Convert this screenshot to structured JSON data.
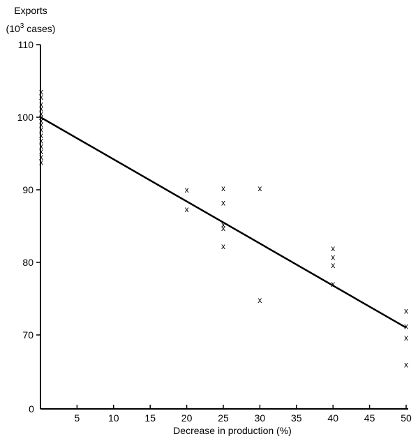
{
  "chart_data": {
    "type": "scatter",
    "ylabel_line1": "Exports",
    "ylabel_line2_prefix": "(10",
    "ylabel_line2_exp": "3",
    "ylabel_line2_suffix": " cases)",
    "xlabel": "Decrease in production (%)",
    "x_ticks": [
      5,
      10,
      15,
      20,
      25,
      30,
      35,
      40,
      45,
      50
    ],
    "x_tick_labels": [
      "5",
      "10",
      "15",
      "20",
      "25",
      "30",
      "35",
      "40",
      "45",
      "50"
    ],
    "x_origin_label": "0",
    "y_ticks": [
      70,
      80,
      90,
      100,
      110
    ],
    "y_tick_labels": [
      "70",
      "80",
      "90",
      "100",
      "110"
    ],
    "xlim": [
      0,
      50
    ],
    "ylim_break": "axis break between 0 and 60",
    "marker": "x",
    "series": [
      {
        "points": [
          [
            0,
            103.5
          ],
          [
            0,
            102.8
          ],
          [
            0,
            101.8
          ],
          [
            0,
            101.2
          ],
          [
            0,
            100.5
          ],
          [
            0,
            100.0
          ],
          [
            0,
            99.5
          ],
          [
            0,
            99.0
          ],
          [
            0,
            98.3
          ],
          [
            0,
            97.5
          ],
          [
            0,
            96.8
          ],
          [
            0,
            96.0
          ],
          [
            0,
            95.3
          ],
          [
            0,
            94.5
          ],
          [
            0,
            93.8
          ],
          [
            20,
            90.0
          ],
          [
            20,
            87.3
          ],
          [
            25,
            90.2
          ],
          [
            25,
            88.2
          ],
          [
            25,
            85.2
          ],
          [
            25,
            84.7
          ],
          [
            25,
            82.2
          ],
          [
            30,
            90.2
          ],
          [
            30,
            74.8
          ],
          [
            40,
            81.9
          ],
          [
            40,
            80.7
          ],
          [
            40,
            79.6
          ],
          [
            40,
            77.0
          ],
          [
            50,
            73.3
          ],
          [
            50,
            71.2
          ],
          [
            50,
            69.6
          ],
          [
            50,
            65.9
          ]
        ]
      }
    ],
    "trend_line": {
      "x": [
        0,
        50
      ],
      "y": [
        100,
        71
      ]
    }
  }
}
